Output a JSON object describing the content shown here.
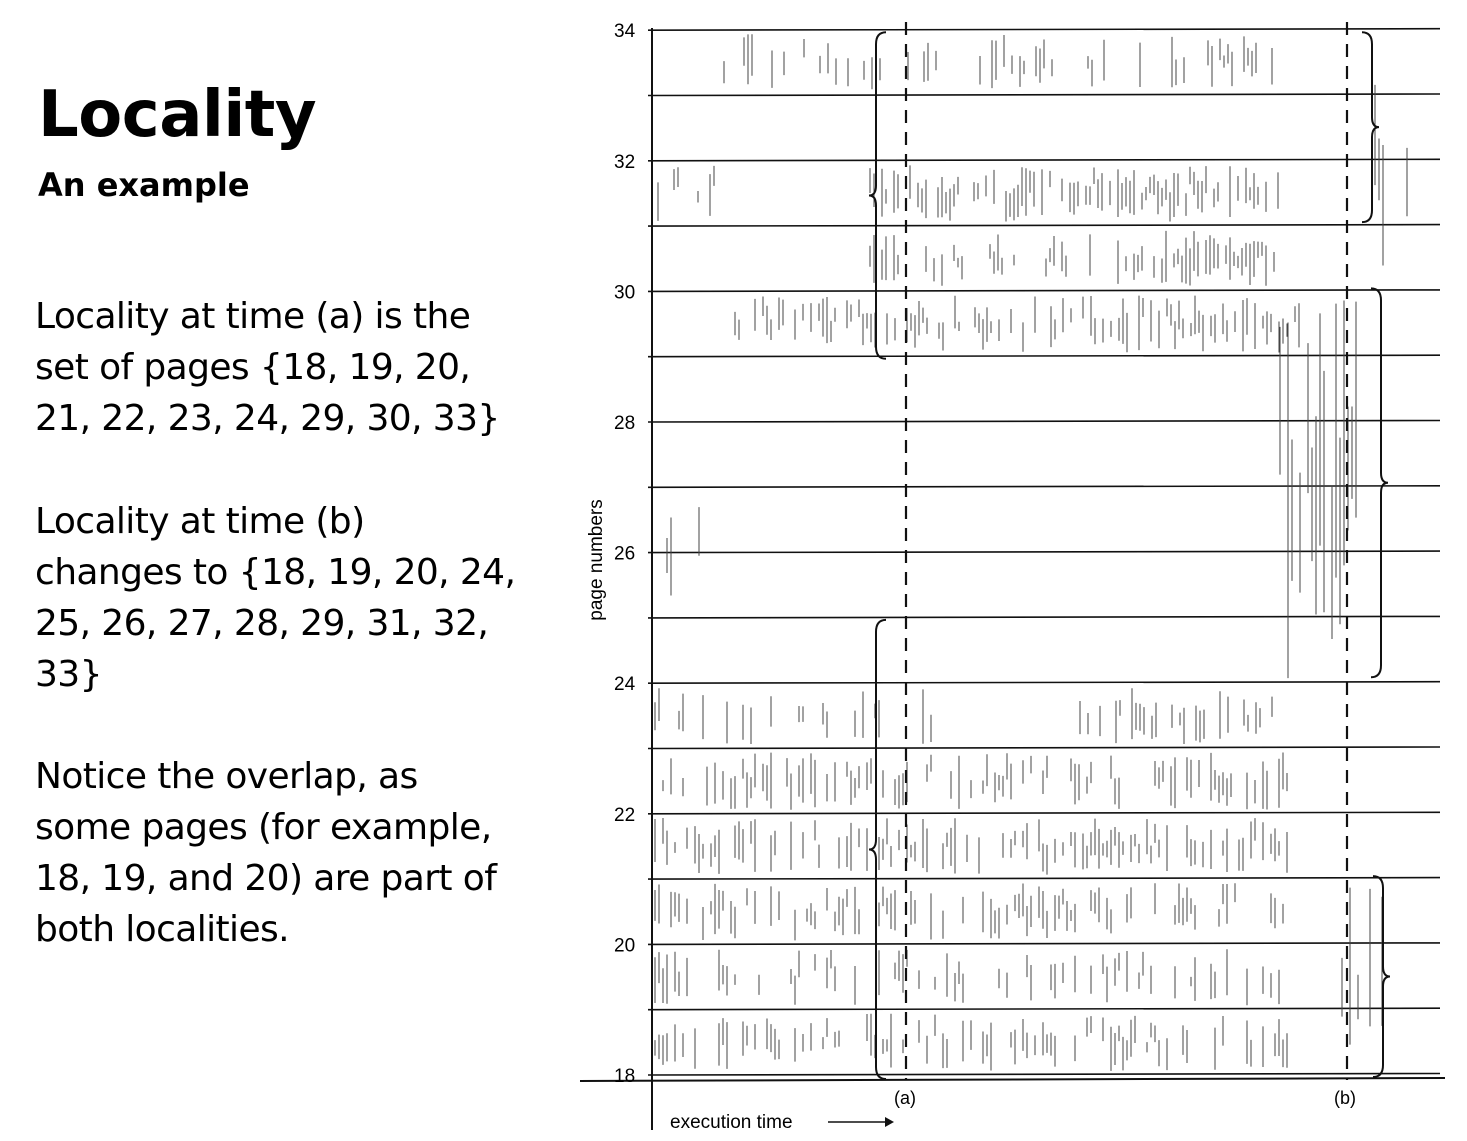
{
  "slide": {
    "title": "Locality",
    "subtitle": "An example",
    "paragraph1": [
      "Locality at time (a) is the",
      "set of pages {18, 19, 20,",
      "21, 22, 23, 24, 29, 30, 33}"
    ],
    "paragraph2": [
      "Locality at time (b)",
      "changes to {18, 19, 20, 24,",
      "25, 26, 27, 28, 29, 31, 32,",
      "33}"
    ],
    "paragraph3": [
      "Notice the overlap, as",
      "some pages (for example,",
      "18, 19, and 20) are part of",
      "both localities."
    ]
  },
  "figure": {
    "y_axis_label": "page numbers",
    "x_axis_label": "execution time",
    "y_ticks": [
      "34",
      "32",
      "30",
      "28",
      "26",
      "24",
      "22",
      "20",
      "18"
    ],
    "marker_a": "(a)",
    "marker_b": "(b)",
    "locality_a_pages": [
      18,
      19,
      20,
      21,
      22,
      23,
      24,
      29,
      30,
      33
    ],
    "locality_b_pages": [
      18,
      19,
      20,
      24,
      25,
      26,
      27,
      28,
      29,
      31,
      32,
      33
    ]
  }
}
